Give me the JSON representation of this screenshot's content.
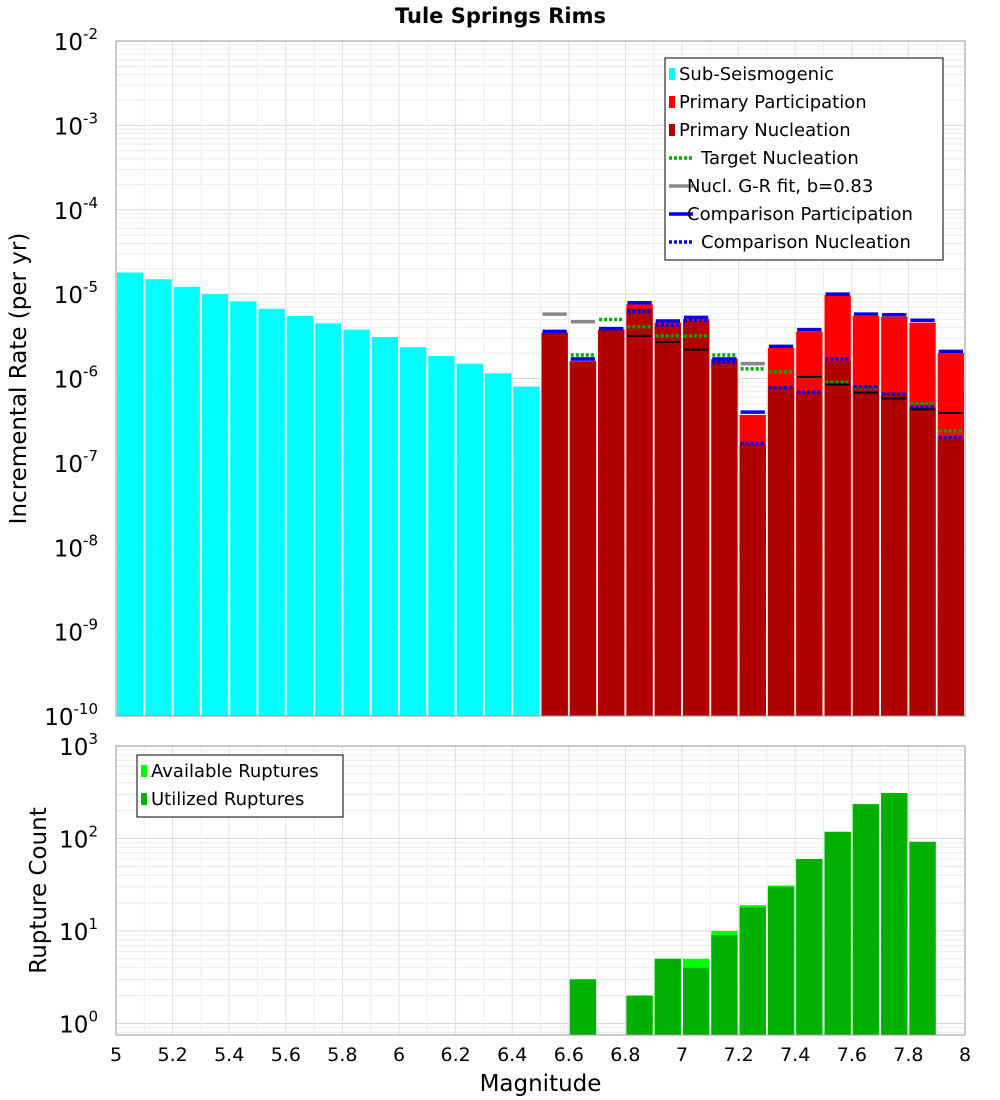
{
  "chart_data": {
    "type": "bar",
    "title": "Tule Springs Rims",
    "xlabel": "Magnitude",
    "xlim": [
      5,
      8
    ],
    "x_ticks": [
      "5",
      "5.2",
      "5.4",
      "5.6",
      "5.8",
      "6",
      "6.2",
      "6.4",
      "6.6",
      "6.8",
      "7",
      "7.2",
      "7.4",
      "7.6",
      "7.8",
      "8"
    ],
    "panels": [
      {
        "id": "rates",
        "ylabel": "Incremental Rate (per yr)",
        "yscale": "log",
        "ylim": [
          1e-10,
          0.01
        ],
        "y_tick_exponents": [
          "-10",
          "-9",
          "-8",
          "-7",
          "-6",
          "-5",
          "-4",
          "-3",
          "-2"
        ],
        "legend": {
          "position": "top-right",
          "entries": [
            {
              "label": "Sub-Seismogenic",
              "style": "bar",
              "color": "#00ffff"
            },
            {
              "label": "Primary Participation",
              "style": "bar",
              "color": "#ff0000"
            },
            {
              "label": "Primary Nucleation",
              "style": "bar",
              "color": "#b00000"
            },
            {
              "label": "Target Nucleation",
              "style": "dotted",
              "color": "#00aa00"
            },
            {
              "label": "Nucl. G-R fit, b=0.83",
              "style": "solid",
              "color": "#888888"
            },
            {
              "label": "Comparison Participation",
              "style": "solid",
              "color": "#0000ee"
            },
            {
              "label": "Comparison Nucleation",
              "style": "dotted",
              "color": "#0000ee"
            }
          ]
        },
        "series": [
          {
            "name": "Sub-Seismogenic",
            "type": "bar",
            "color": "#00ffff",
            "x": [
              5.05,
              5.15,
              5.25,
              5.35,
              5.45,
              5.55,
              5.65,
              5.75,
              5.85,
              5.95,
              6.05,
              6.15,
              6.25,
              6.35,
              6.45
            ],
            "values": [
              1.8e-05,
              1.5e-05,
              1.22e-05,
              1e-05,
              8.2e-06,
              6.7e-06,
              5.5e-06,
              4.5e-06,
              3.8e-06,
              3.1e-06,
              2.35e-06,
              1.85e-06,
              1.5e-06,
              1.15e-06,
              8e-07
            ]
          },
          {
            "name": "Primary Participation",
            "type": "bar",
            "color": "#ff0000",
            "x": [
              6.55,
              6.65,
              6.75,
              6.85,
              6.95,
              7.05,
              7.15,
              7.25,
              7.35,
              7.45,
              7.55,
              7.65,
              7.75,
              7.85,
              7.95
            ],
            "values": [
              3.5e-06,
              1.6e-06,
              3.8e-06,
              7.6e-06,
              4.6e-06,
              5.1e-06,
              1.7e-06,
              3.7e-07,
              2.3e-06,
              3.6e-06,
              9.7e-06,
              5.5e-06,
              5.4e-06,
              4.6e-06,
              2e-06
            ]
          },
          {
            "name": "Primary Nucleation",
            "type": "bar",
            "color": "#b00000",
            "x": [
              6.55,
              6.65,
              6.75,
              6.85,
              6.95,
              7.05,
              7.15,
              7.25,
              7.35,
              7.45,
              7.55,
              7.65,
              7.75,
              7.85,
              7.95
            ],
            "values": [
              3.5e-06,
              1.6e-06,
              3.8e-06,
              6.8e-06,
              4.3e-06,
              4.8e-06,
              1.7e-06,
              1.7e-07,
              8e-07,
              7e-07,
              1.6e-06,
              8e-07,
              6.8e-07,
              4.6e-07,
              1.95e-07
            ]
          },
          {
            "name": "Target Nucleation",
            "type": "dotted-step",
            "color": "#00aa00",
            "x": [
              6.55,
              6.65,
              6.75,
              6.85,
              6.95,
              7.05,
              7.15,
              7.25,
              7.35,
              7.45,
              7.55,
              7.65,
              7.75,
              7.85,
              7.95
            ],
            "values": [
              3.6e-06,
              1.9e-06,
              5e-06,
              4.1e-06,
              3.2e-06,
              3.2e-06,
              1.9e-06,
              1.3e-06,
              1.2e-06,
              1.05e-06,
              9e-07,
              7.8e-07,
              6.5e-07,
              5e-07,
              2.4e-07
            ]
          },
          {
            "name": "Nucl. G-R fit, b=0.83",
            "type": "solid-step",
            "color": "#888888",
            "x": [
              6.55,
              6.65,
              7.15,
              7.25
            ],
            "values": [
              5.8e-06,
              4.7e-06,
              1.7e-06,
              1.5e-06
            ]
          },
          {
            "name": "Black nucleation markers",
            "type": "solid-step",
            "color": "#000000",
            "x": [
              6.85,
              6.95,
              7.05,
              7.45,
              7.55,
              7.65,
              7.75,
              7.85,
              7.95
            ],
            "values": [
              3.2e-06,
              2.7e-06,
              2.2e-06,
              1.05e-06,
              8.5e-07,
              6.8e-07,
              5.8e-07,
              4.3e-07,
              3.9e-07
            ]
          },
          {
            "name": "Comparison Participation",
            "type": "solid-step",
            "color": "#0000ee",
            "x": [
              6.55,
              6.65,
              6.75,
              6.85,
              6.95,
              7.05,
              7.15,
              7.25,
              7.35,
              7.45,
              7.55,
              7.65,
              7.75,
              7.85,
              7.95
            ],
            "values": [
              3.6e-06,
              1.7e-06,
              3.9e-06,
              7.9e-06,
              4.8e-06,
              5.3e-06,
              1.7e-06,
              4e-07,
              2.4e-06,
              3.8e-06,
              1e-05,
              5.8e-06,
              5.7e-06,
              4.9e-06,
              2.1e-06
            ]
          },
          {
            "name": "Comparison Nucleation",
            "type": "dotted-step",
            "color": "#0000ee",
            "x": [
              6.55,
              6.65,
              6.75,
              6.85,
              6.95,
              7.05,
              7.15,
              7.25,
              7.35,
              7.45,
              7.55,
              7.65,
              7.75,
              7.85,
              7.95
            ],
            "values": [
              3.6e-06,
              1.7e-06,
              3.9e-06,
              6.2e-06,
              4.3e-06,
              4.9e-06,
              1.55e-06,
              1.7e-07,
              7.8e-07,
              6.9e-07,
              1.7e-06,
              8e-07,
              6.5e-07,
              4.6e-07,
              2e-07
            ]
          }
        ]
      },
      {
        "id": "counts",
        "ylabel": "Rupture Count",
        "yscale": "log",
        "ylim": [
          0.75,
          1000
        ],
        "y_tick_exponents": [
          "0",
          "1",
          "2",
          "3"
        ],
        "legend": {
          "position": "top-left",
          "entries": [
            {
              "label": "Available Ruptures",
              "style": "bar",
              "color": "#00ff00"
            },
            {
              "label": "Utilized Ruptures",
              "style": "bar",
              "color": "#00b000"
            }
          ]
        },
        "series": [
          {
            "name": "Available Ruptures",
            "type": "bar",
            "color": "#00ff00",
            "x": [
              6.65,
              6.85,
              6.95,
              7.05,
              7.15,
              7.25,
              7.35,
              7.45,
              7.55,
              7.65,
              7.75,
              7.85
            ],
            "values": [
              3,
              2,
              5,
              5,
              10,
              19,
              31,
              60,
              118,
              235,
              310,
              92
            ]
          },
          {
            "name": "Utilized Ruptures",
            "type": "bar",
            "color": "#00b000",
            "x": [
              6.65,
              6.85,
              6.95,
              7.05,
              7.15,
              7.25,
              7.35,
              7.45,
              7.55,
              7.65,
              7.75,
              7.85
            ],
            "values": [
              3,
              2,
              5,
              4,
              9,
              18,
              30,
              60,
              118,
              235,
              310,
              92
            ]
          }
        ]
      }
    ]
  }
}
